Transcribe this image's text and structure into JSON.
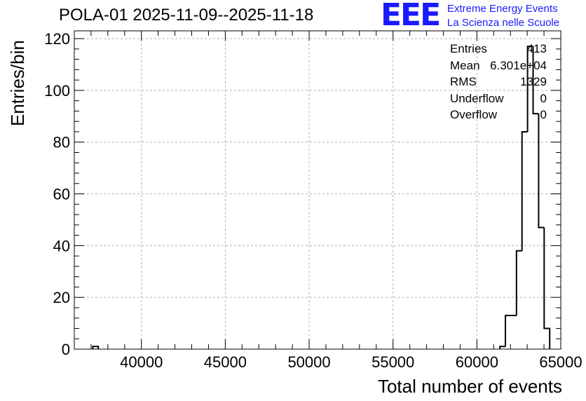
{
  "header": {
    "title": "POLA-01 2025-11-09--2025-11-18"
  },
  "logo": {
    "mark": "EEE",
    "line1": "Extreme Energy Events",
    "line2": "La Scienza nelle Scuole",
    "color": "#1a1aff"
  },
  "stats": [
    {
      "label": "Entries",
      "value": "413"
    },
    {
      "label": "Mean",
      "value": "6.301e+04"
    },
    {
      "label": "RMS",
      "value": "1329"
    },
    {
      "label": "Underflow",
      "value": "0"
    },
    {
      "label": "Overflow",
      "value": "0"
    }
  ],
  "chart_data": {
    "type": "bar",
    "title": "POLA-01 2025-11-09--2025-11-18",
    "xlabel": "Total number of events",
    "ylabel": "Entries/bin",
    "xlim": [
      36000,
      65000
    ],
    "ylim": [
      0,
      123
    ],
    "x_ticks": [
      40000,
      45000,
      50000,
      55000,
      60000,
      65000
    ],
    "y_ticks": [
      0,
      20,
      40,
      60,
      80,
      100,
      120
    ],
    "grid": true,
    "legend": "top-right",
    "line_color": "#000000",
    "bin_width": 330,
    "bins": [
      {
        "x0": 37100,
        "x1": 37430,
        "count": 1
      },
      {
        "x0": 61370,
        "x1": 61700,
        "count": 1
      },
      {
        "x0": 61700,
        "x1": 62030,
        "count": 13
      },
      {
        "x0": 62030,
        "x1": 62360,
        "count": 13
      },
      {
        "x0": 62360,
        "x1": 62690,
        "count": 38
      },
      {
        "x0": 62690,
        "x1": 63020,
        "count": 84
      },
      {
        "x0": 63020,
        "x1": 63350,
        "count": 117
      },
      {
        "x0": 63350,
        "x1": 63680,
        "count": 91
      },
      {
        "x0": 63680,
        "x1": 64010,
        "count": 47
      },
      {
        "x0": 64010,
        "x1": 64340,
        "count": 8
      }
    ]
  }
}
